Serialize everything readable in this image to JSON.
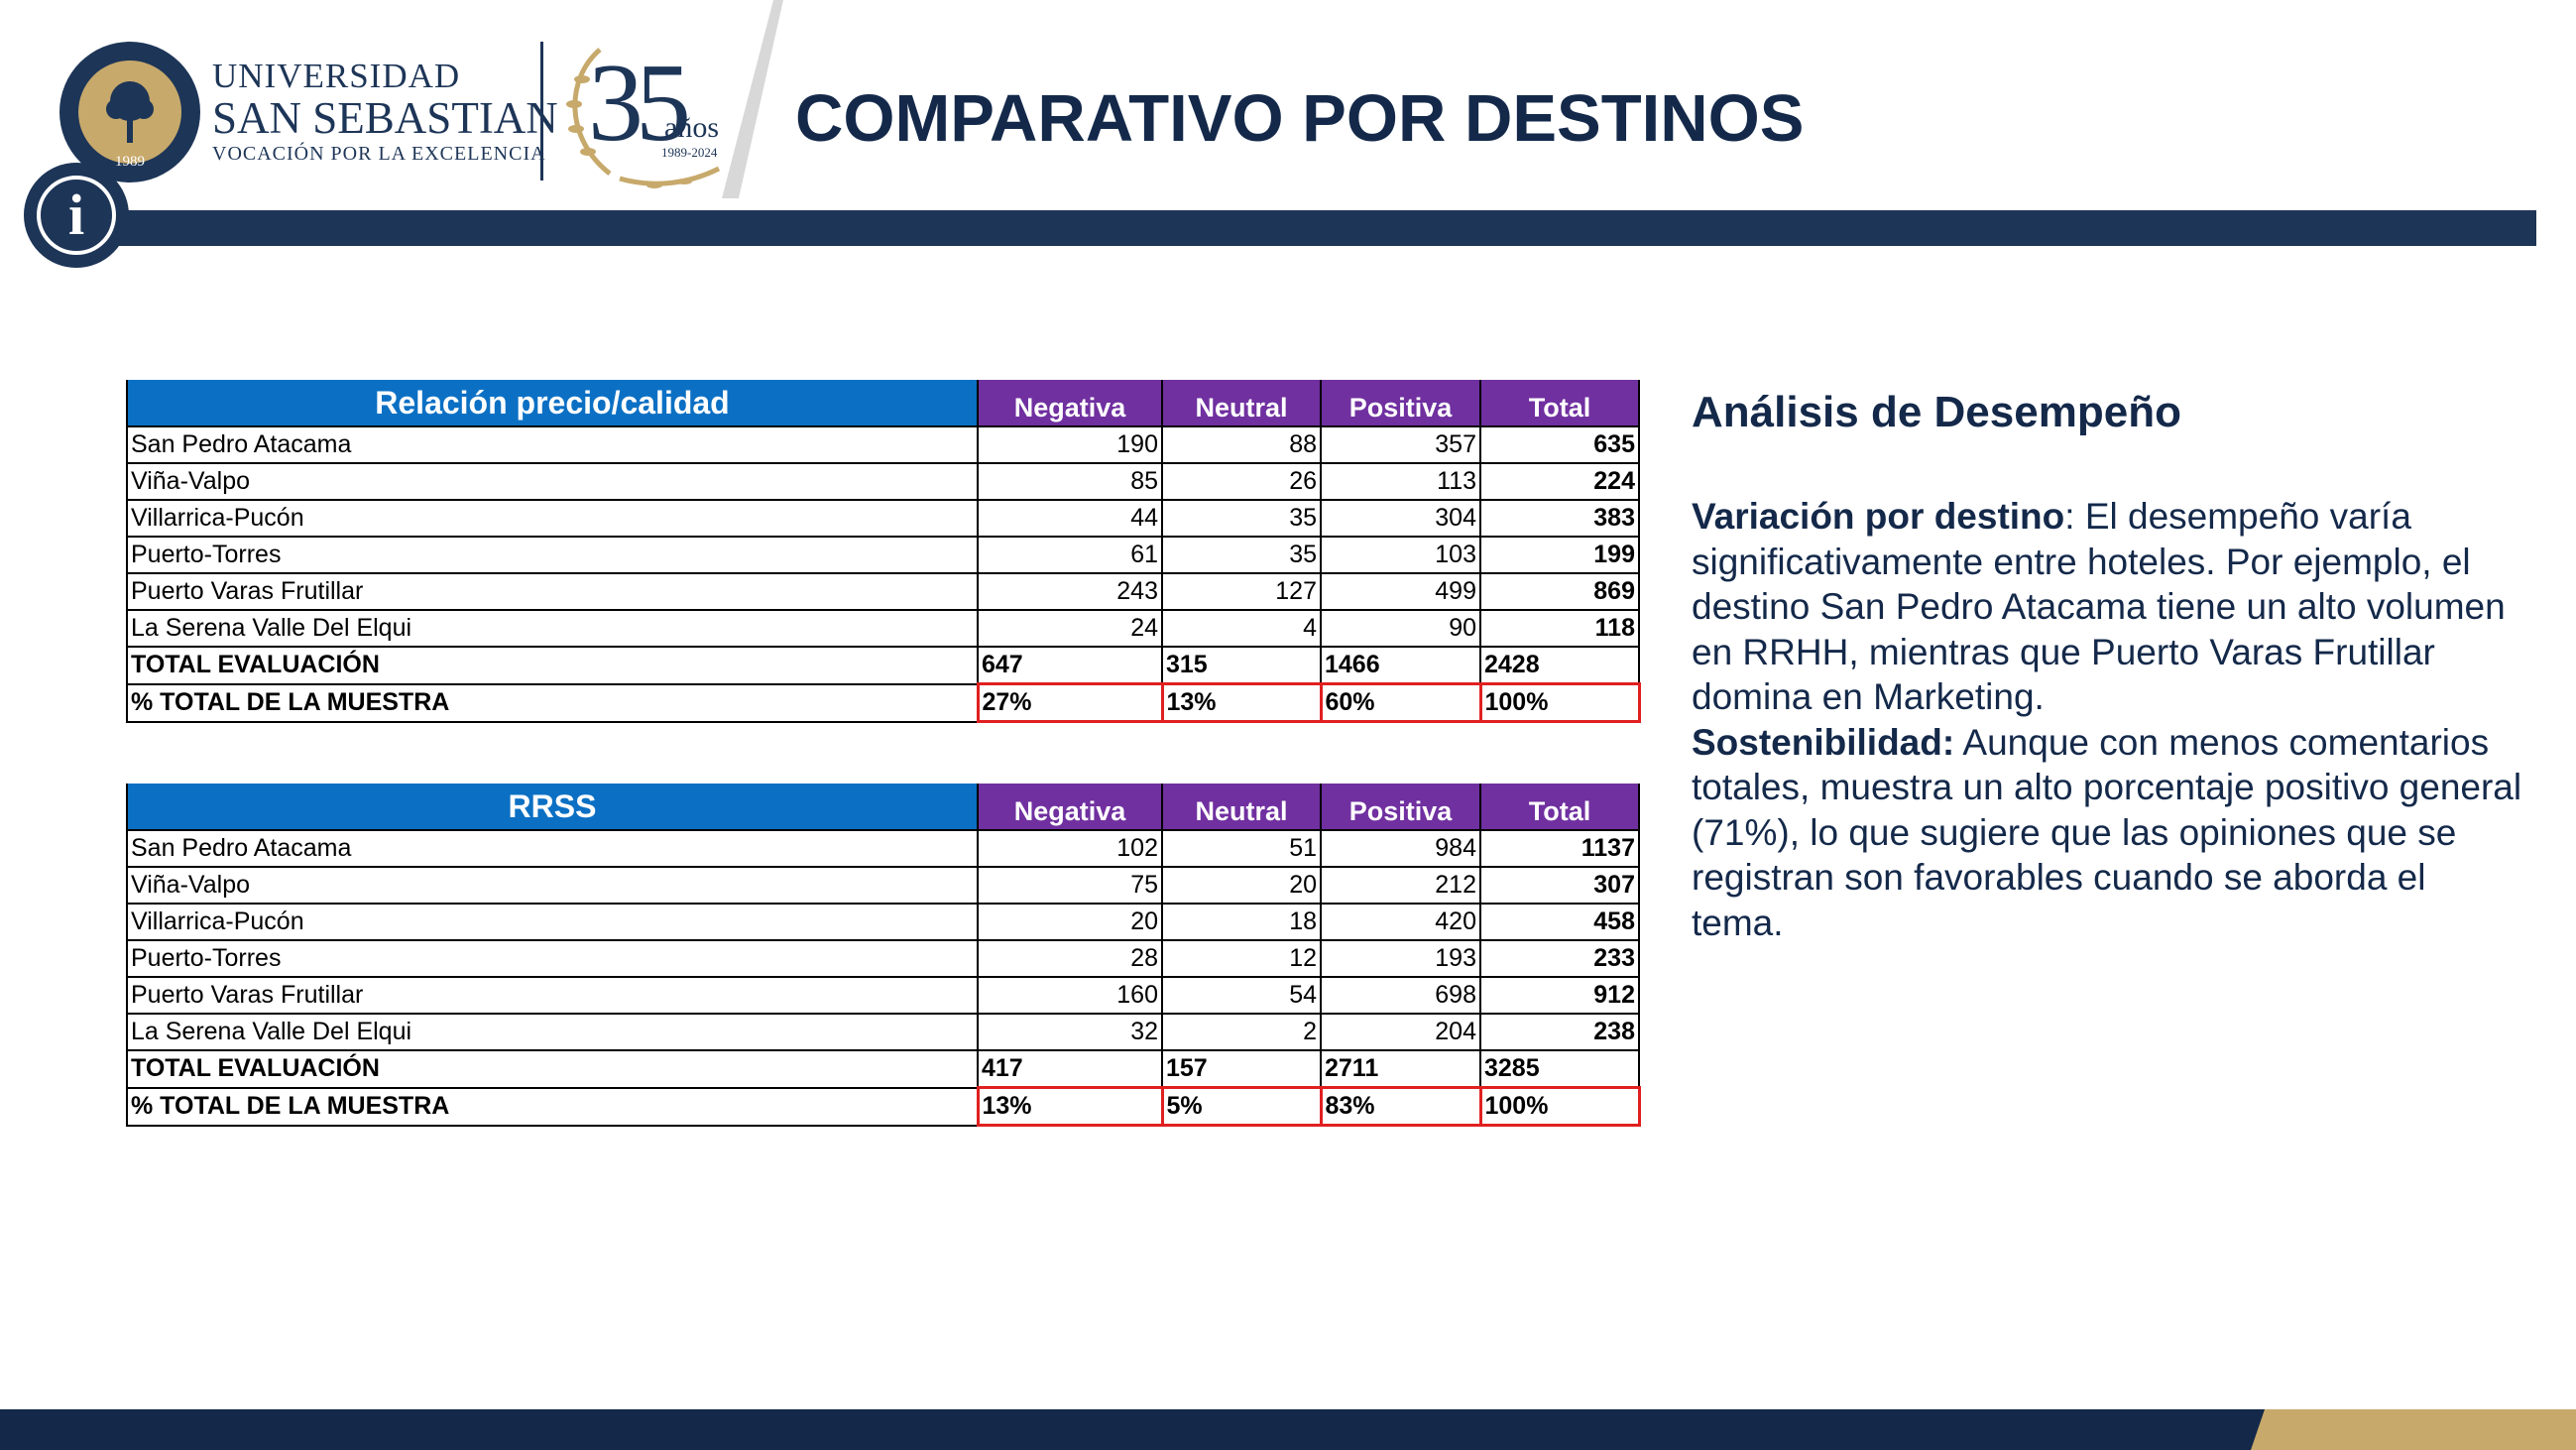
{
  "header": {
    "university_line1": "UNIVERSIDAD",
    "university_line2": "SAN SEBASTIAN",
    "university_line3": "VOCACIÓN POR LA EXCELENCIA",
    "seal_year": "1989",
    "anniversary_number": "35",
    "anniversary_word": "años",
    "anniversary_range": "1989-2024",
    "title": "COMPARATIVO POR DESTINOS",
    "info_icon": "info-icon",
    "brand_color": "#1d3557",
    "gold_color": "#c7a96b"
  },
  "tables": [
    {
      "category": "Relación precio/calidad",
      "columns": [
        "Negativa",
        "Neutral",
        "Positiva",
        "Total"
      ],
      "rows": [
        {
          "destino": "San Pedro Atacama",
          "negativa": "190",
          "neutral": "88",
          "positiva": "357",
          "total": "635"
        },
        {
          "destino": "Viña-Valpo",
          "negativa": "85",
          "neutral": "26",
          "positiva": "113",
          "total": "224"
        },
        {
          "destino": "Villarrica-Pucón",
          "negativa": "44",
          "neutral": "35",
          "positiva": "304",
          "total": "383"
        },
        {
          "destino": "Puerto-Torres",
          "negativa": "61",
          "neutral": "35",
          "positiva": "103",
          "total": "199"
        },
        {
          "destino": "Puerto Varas Frutillar",
          "negativa": "243",
          "neutral": "127",
          "positiva": "499",
          "total": "869"
        },
        {
          "destino": "La Serena Valle Del Elqui",
          "negativa": "24",
          "neutral": "4",
          "positiva": "90",
          "total": "118"
        }
      ],
      "total_row": {
        "label": "TOTAL EVALUACIÓN",
        "negativa": "647",
        "neutral": "315",
        "positiva": "1466",
        "total": "2428"
      },
      "pct_row": {
        "label": "% TOTAL DE LA MUESTRA",
        "negativa": "27%",
        "neutral": "13%",
        "positiva": "60%",
        "total": "100%"
      }
    },
    {
      "category": "RRSS",
      "columns": [
        "Negativa",
        "Neutral",
        "Positiva",
        "Total"
      ],
      "rows": [
        {
          "destino": "San Pedro Atacama",
          "negativa": "102",
          "neutral": "51",
          "positiva": "984",
          "total": "1137"
        },
        {
          "destino": "Viña-Valpo",
          "negativa": "75",
          "neutral": "20",
          "positiva": "212",
          "total": "307"
        },
        {
          "destino": "Villarrica-Pucón",
          "negativa": "20",
          "neutral": "18",
          "positiva": "420",
          "total": "458"
        },
        {
          "destino": "Puerto-Torres",
          "negativa": "28",
          "neutral": "12",
          "positiva": "193",
          "total": "233"
        },
        {
          "destino": "Puerto Varas Frutillar",
          "negativa": "160",
          "neutral": "54",
          "positiva": "698",
          "total": "912"
        },
        {
          "destino": "La Serena Valle Del Elqui",
          "negativa": "32",
          "neutral": "2",
          "positiva": "204",
          "total": "238"
        }
      ],
      "total_row": {
        "label": "TOTAL EVALUACIÓN",
        "negativa": "417",
        "neutral": "157",
        "positiva": "2711",
        "total": "3285"
      },
      "pct_row": {
        "label": "% TOTAL DE LA MUESTRA",
        "negativa": "13%",
        "neutral": "5%",
        "positiva": "83%",
        "total": "100%"
      }
    }
  ],
  "colors": {
    "category_header": "#0b70c4",
    "column_header": "#7030a0",
    "highlight_border": "#e02020",
    "title_text": "#14294a"
  },
  "analysis": {
    "title": "Análisis de Desempeño",
    "p1_label": "Variación por destino",
    "p1_text": ": El desempeño varía significativamente entre hoteles. Por ejemplo, el destino San Pedro Atacama tiene un alto volumen en RRHH, mientras que Puerto Varas Frutillar domina en Marketing.",
    "p2_label": "Sostenibilidad:",
    "p2_text": " Aunque con menos comentarios totales, muestra un alto porcentaje positivo general (71%), lo que sugiere que las opiniones que se registran son favorables cuando se aborda el tema."
  }
}
